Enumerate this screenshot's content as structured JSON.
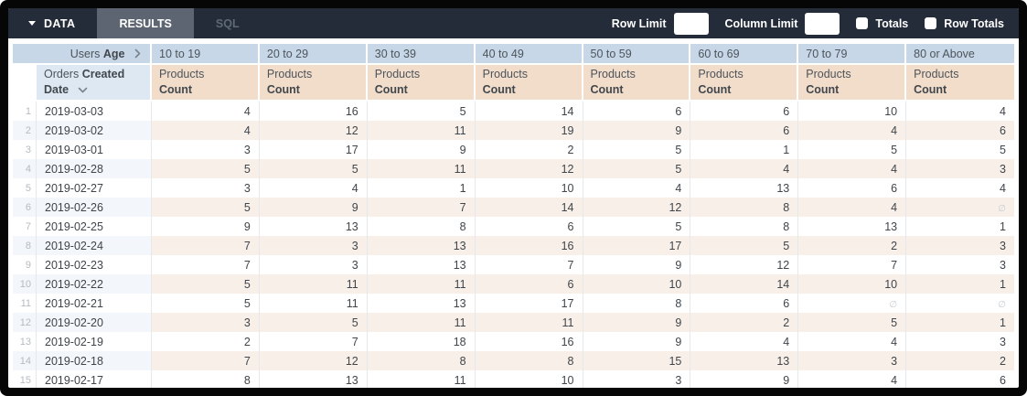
{
  "toolbar": {
    "data_tab": "DATA",
    "results_tab": "RESULTS",
    "sql_tab": "SQL",
    "row_limit_label": "Row Limit",
    "row_limit_value": "",
    "column_limit_label": "Column Limit",
    "column_limit_value": "",
    "totals_label": "Totals",
    "row_totals_label": "Row Totals",
    "totals_checked": false,
    "row_totals_checked": false
  },
  "pivot": {
    "dimension_normal": "Users",
    "dimension_bold": "Age",
    "row_dimension_normal": "Orders",
    "row_dimension_bold": "Created Date",
    "measure_normal": "Products",
    "measure_bold": "Count",
    "null_symbol": "∅",
    "age_buckets": [
      "10 to 19",
      "20 to 29",
      "30 to 39",
      "40 to 49",
      "50 to 59",
      "60 to 69",
      "70 to 79",
      "80 or Above"
    ],
    "rows": [
      {
        "n": 1,
        "date": "2019-03-03",
        "values": [
          4,
          16,
          5,
          14,
          6,
          6,
          10,
          4
        ]
      },
      {
        "n": 2,
        "date": "2019-03-02",
        "values": [
          4,
          12,
          11,
          19,
          9,
          6,
          4,
          6
        ]
      },
      {
        "n": 3,
        "date": "2019-03-01",
        "values": [
          3,
          17,
          9,
          2,
          5,
          1,
          5,
          5
        ]
      },
      {
        "n": 4,
        "date": "2019-02-28",
        "values": [
          5,
          5,
          11,
          12,
          5,
          4,
          4,
          3
        ]
      },
      {
        "n": 5,
        "date": "2019-02-27",
        "values": [
          3,
          4,
          1,
          10,
          4,
          13,
          6,
          4
        ]
      },
      {
        "n": 6,
        "date": "2019-02-26",
        "values": [
          5,
          9,
          7,
          14,
          12,
          8,
          4,
          null
        ]
      },
      {
        "n": 7,
        "date": "2019-02-25",
        "values": [
          9,
          13,
          8,
          6,
          5,
          8,
          13,
          1
        ]
      },
      {
        "n": 8,
        "date": "2019-02-24",
        "values": [
          7,
          3,
          13,
          16,
          17,
          5,
          2,
          3
        ]
      },
      {
        "n": 9,
        "date": "2019-02-23",
        "values": [
          7,
          3,
          13,
          7,
          9,
          12,
          7,
          3
        ]
      },
      {
        "n": 10,
        "date": "2019-02-22",
        "values": [
          5,
          11,
          11,
          6,
          10,
          14,
          10,
          1
        ]
      },
      {
        "n": 11,
        "date": "2019-02-21",
        "values": [
          5,
          11,
          13,
          17,
          8,
          6,
          null,
          null
        ]
      },
      {
        "n": 12,
        "date": "2019-02-20",
        "values": [
          3,
          5,
          11,
          11,
          9,
          2,
          5,
          1
        ]
      },
      {
        "n": 13,
        "date": "2019-02-19",
        "values": [
          2,
          7,
          18,
          16,
          9,
          4,
          4,
          3
        ]
      },
      {
        "n": 14,
        "date": "2019-02-18",
        "values": [
          7,
          12,
          8,
          8,
          15,
          13,
          3,
          2
        ]
      },
      {
        "n": 15,
        "date": "2019-02-17",
        "values": [
          8,
          13,
          11,
          10,
          3,
          9,
          4,
          6
        ]
      }
    ]
  },
  "colors": {
    "toolbar_bg": "#242c3a",
    "results_tab_bg": "#5c6571",
    "header_blue": "#c7d7e7",
    "row_dimension_blue": "#dde8f2",
    "measure_peach": "#f2ddcb",
    "stripe_blue": "#f3f6fa",
    "stripe_peach": "#f8f0e8",
    "window_frame": "#060606"
  }
}
